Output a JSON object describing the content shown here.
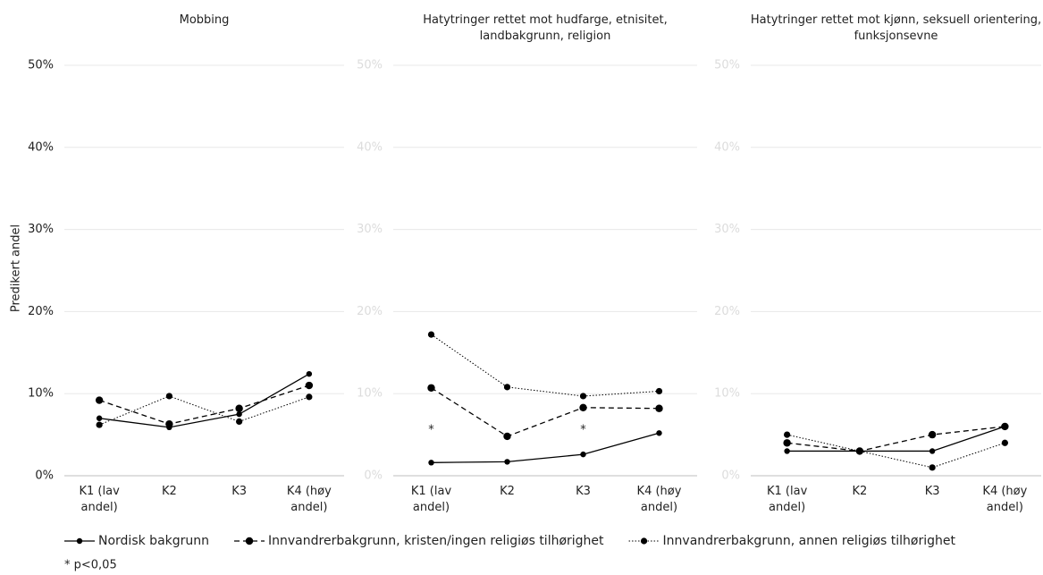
{
  "y_label": "Predikert andel",
  "footnote": "* p<0,05",
  "chart_data": [
    {
      "type": "line",
      "title": "Mobbing",
      "categories": [
        "K1 (lav andel)",
        "K2",
        "K3",
        "K4 (høy andel)"
      ],
      "ylim": [
        0,
        50
      ],
      "yticks": [
        {
          "value": 0,
          "label": "0%"
        },
        {
          "value": 10,
          "label": "10%"
        },
        {
          "value": 20,
          "label": "20%"
        },
        {
          "value": 30,
          "label": "30%"
        },
        {
          "value": 40,
          "label": "40%"
        },
        {
          "value": 50,
          "label": "50%"
        }
      ],
      "grid": true,
      "series": [
        {
          "name": "Nordisk bakgrunn",
          "color": "#000000",
          "line_style": "solid",
          "values": [
            7.0,
            5.9,
            7.5,
            12.4
          ]
        },
        {
          "name": "Innvandrerbakgrunn, kristen/ingen religiøs tilhørighet",
          "color": "#000000",
          "line_style": "dashed",
          "values": [
            9.2,
            6.3,
            8.2,
            11.0
          ]
        },
        {
          "name": "Innvandrerbakgrunn, annen religiøs tilhørighet",
          "color": "#000000",
          "line_style": "dotted",
          "values": [
            6.2,
            9.7,
            6.6,
            9.6
          ]
        }
      ]
    },
    {
      "type": "line",
      "title": "Hatytringer rettet mot hudfarge, etnisitet, landbakgrunn, religion",
      "categories": [
        "K1 (lav andel)",
        "K2",
        "K3",
        "K4 (høy andel)"
      ],
      "ylim": [
        0,
        50
      ],
      "yticks": [
        {
          "value": 0,
          "label": "0%"
        },
        {
          "value": 10,
          "label": "10%"
        },
        {
          "value": 20,
          "label": "20%"
        },
        {
          "value": 30,
          "label": "30%"
        },
        {
          "value": 40,
          "label": "40%"
        },
        {
          "value": 50,
          "label": "50%"
        }
      ],
      "grid": true,
      "significance": [
        "*",
        null,
        "*",
        null
      ],
      "series": [
        {
          "name": "Nordisk bakgrunn",
          "color": "#000000",
          "line_style": "solid",
          "values": [
            1.6,
            1.7,
            2.6,
            5.2
          ]
        },
        {
          "name": "Innvandrerbakgrunn, kristen/ingen religiøs tilhørighet",
          "color": "#000000",
          "line_style": "dashed",
          "values": [
            10.7,
            4.8,
            8.3,
            8.2
          ]
        },
        {
          "name": "Innvandrerbakgrunn, annen religiøs tilhørighet",
          "color": "#000000",
          "line_style": "dotted",
          "values": [
            17.2,
            10.8,
            9.7,
            10.3
          ]
        }
      ]
    },
    {
      "type": "line",
      "title": "Hatytringer rettet mot kjønn, seksuell orientering, funksjonsevne",
      "categories": [
        "K1 (lav andel)",
        "K2",
        "K3",
        "K4 (høy andel)"
      ],
      "ylim": [
        0,
        50
      ],
      "yticks": [
        {
          "value": 0,
          "label": "0%"
        },
        {
          "value": 10,
          "label": "10%"
        },
        {
          "value": 20,
          "label": "20%"
        },
        {
          "value": 30,
          "label": "30%"
        },
        {
          "value": 40,
          "label": "40%"
        },
        {
          "value": 50,
          "label": "50%"
        }
      ],
      "grid": true,
      "series": [
        {
          "name": "Nordisk bakgrunn",
          "color": "#000000",
          "line_style": "solid",
          "values": [
            3.0,
            3.0,
            3.0,
            6.0
          ]
        },
        {
          "name": "Innvandrerbakgrunn, kristen/ingen religiøs tilhørighet",
          "color": "#000000",
          "line_style": "dashed",
          "values": [
            4.0,
            3.0,
            5.0,
            6.0
          ]
        },
        {
          "name": "Innvandrerbakgrunn, annen religiøs tilhørighet",
          "color": "#000000",
          "line_style": "dotted",
          "values": [
            5.0,
            3.0,
            1.0,
            4.0
          ]
        }
      ]
    }
  ]
}
